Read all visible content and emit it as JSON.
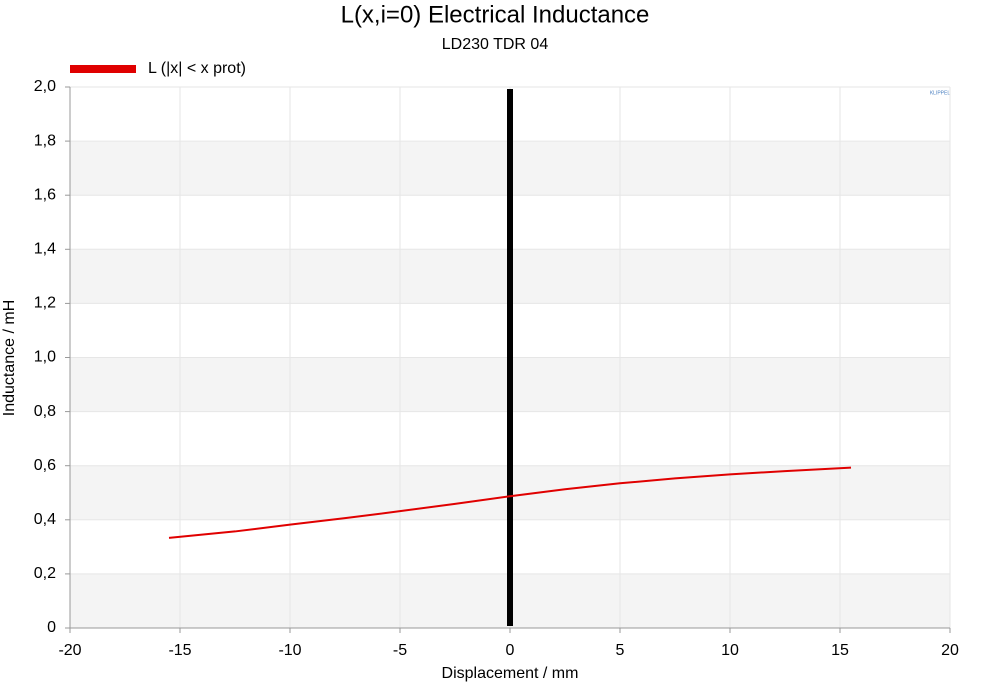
{
  "chart_data": {
    "type": "line",
    "title": "L(x,i=0) Electrical Inductance",
    "subtitle": "LD230 TDR 04",
    "x_label": "Displacement / mm",
    "y_label": "Inductance / mH",
    "logo": "KLIPPEL",
    "x": [
      -15.5,
      -12.5,
      -10,
      -7.5,
      -5,
      -2.5,
      0,
      2.5,
      5,
      7.5,
      10,
      12.5,
      15.5
    ],
    "series": [
      {
        "name": "L (|x| < x prot)",
        "color": "#e00000",
        "values": [
          0.333,
          0.357,
          0.382,
          0.406,
          0.432,
          0.459,
          0.487,
          0.513,
          0.535,
          0.553,
          0.568,
          0.58,
          0.593
        ]
      }
    ],
    "vline_x": 0,
    "vline_color": "#000000",
    "xlim": [
      -20,
      20
    ],
    "xticks": [
      -20,
      -15,
      -10,
      -5,
      0,
      5,
      10,
      15,
      20
    ],
    "ylim": [
      0,
      2
    ],
    "yticks": [
      0,
      {
        "value": 0.2,
        "label": "0,2"
      },
      {
        "value": 0.4,
        "label": "0,4"
      },
      {
        "value": 0.6,
        "label": "0,6"
      },
      {
        "value": 0.8,
        "label": "0,8"
      },
      {
        "value": 1.0,
        "label": "1,0"
      },
      {
        "value": 1.2,
        "label": "1,2"
      },
      {
        "value": 1.4,
        "label": "1,4"
      },
      {
        "value": 1.6,
        "label": "1,6"
      },
      {
        "value": 1.8,
        "label": "1,8"
      },
      {
        "value": 2.0,
        "label": "2,0"
      }
    ],
    "grid": true,
    "legend": "top-left"
  }
}
